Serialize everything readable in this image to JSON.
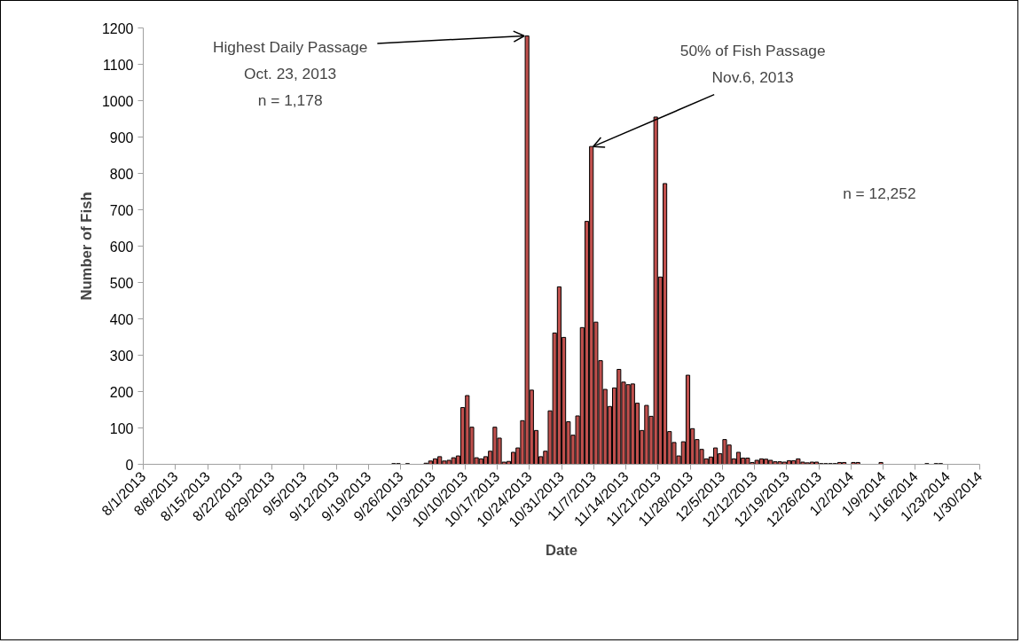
{
  "chart_data": {
    "type": "bar",
    "xlabel": "Date",
    "ylabel": "Number of Fish",
    "x": [
      "2013-09-24",
      "2013-09-25",
      "2013-09-27",
      "2013-10-01",
      "2013-10-02",
      "2013-10-03",
      "2013-10-04",
      "2013-10-05",
      "2013-10-06",
      "2013-10-07",
      "2013-10-08",
      "2013-10-09",
      "2013-10-10",
      "2013-10-11",
      "2013-10-12",
      "2013-10-13",
      "2013-10-14",
      "2013-10-15",
      "2013-10-16",
      "2013-10-17",
      "2013-10-18",
      "2013-10-19",
      "2013-10-20",
      "2013-10-21",
      "2013-10-22",
      "2013-10-23",
      "2013-10-24",
      "2013-10-25",
      "2013-10-26",
      "2013-10-27",
      "2013-10-28",
      "2013-10-29",
      "2013-10-30",
      "2013-10-31",
      "2013-11-01",
      "2013-11-02",
      "2013-11-03",
      "2013-11-04",
      "2013-11-05",
      "2013-11-06",
      "2013-11-07",
      "2013-11-08",
      "2013-11-09",
      "2013-11-10",
      "2013-11-11",
      "2013-11-12",
      "2013-11-13",
      "2013-11-14",
      "2013-11-15",
      "2013-11-16",
      "2013-11-17",
      "2013-11-18",
      "2013-11-19",
      "2013-11-20",
      "2013-11-21",
      "2013-11-22",
      "2013-11-23",
      "2013-11-24",
      "2013-11-25",
      "2013-11-26",
      "2013-11-27",
      "2013-11-28",
      "2013-11-29",
      "2013-11-30",
      "2013-12-01",
      "2013-12-02",
      "2013-12-03",
      "2013-12-04",
      "2013-12-05",
      "2013-12-06",
      "2013-12-07",
      "2013-12-08",
      "2013-12-09",
      "2013-12-10",
      "2013-12-11",
      "2013-12-12",
      "2013-12-13",
      "2013-12-14",
      "2013-12-15",
      "2013-12-16",
      "2013-12-17",
      "2013-12-18",
      "2013-12-19",
      "2013-12-20",
      "2013-12-21",
      "2013-12-22",
      "2013-12-23",
      "2013-12-24",
      "2013-12-25",
      "2013-12-26",
      "2013-12-27",
      "2013-12-28",
      "2013-12-29",
      "2013-12-30",
      "2013-12-31",
      "2014-01-02",
      "2014-01-03",
      "2014-01-08",
      "2014-01-18",
      "2014-01-20",
      "2014-01-21"
    ],
    "values": [
      2,
      2,
      2,
      3,
      9,
      15,
      21,
      9,
      11,
      18,
      23,
      156,
      189,
      102,
      18,
      15,
      21,
      36,
      102,
      72,
      6,
      8,
      33,
      45,
      120,
      1178,
      204,
      93,
      21,
      36,
      147,
      361,
      488,
      349,
      117,
      80,
      133,
      376,
      668,
      874,
      391,
      285,
      206,
      159,
      210,
      261,
      226,
      219,
      221,
      168,
      93,
      162,
      132,
      955,
      515,
      772,
      90,
      60,
      23,
      62,
      245,
      98,
      68,
      41,
      15,
      20,
      45,
      29,
      68,
      53,
      15,
      33,
      17,
      17,
      5,
      11,
      15,
      14,
      11,
      7,
      7,
      6,
      10,
      10,
      15,
      6,
      4,
      6,
      6,
      2,
      2,
      2,
      2,
      5,
      5,
      5,
      5,
      5,
      2,
      2,
      2
    ],
    "color": "#c0504d",
    "xlim": [
      "2013-08-01",
      "2014-01-30"
    ],
    "xticks": [
      {
        "value": "2013-08-01",
        "label": "8/1/2013"
      },
      {
        "value": "2013-08-08",
        "label": "8/8/2013"
      },
      {
        "value": "2013-08-15",
        "label": "8/15/2013"
      },
      {
        "value": "2013-08-22",
        "label": "8/22/2013"
      },
      {
        "value": "2013-08-29",
        "label": "8/29/2013"
      },
      {
        "value": "2013-09-05",
        "label": "9/5/2013"
      },
      {
        "value": "2013-09-12",
        "label": "9/12/2013"
      },
      {
        "value": "2013-09-19",
        "label": "9/19/2013"
      },
      {
        "value": "2013-09-26",
        "label": "9/26/2013"
      },
      {
        "value": "2013-10-03",
        "label": "10/3/2013"
      },
      {
        "value": "2013-10-10",
        "label": "10/10/2013"
      },
      {
        "value": "2013-10-17",
        "label": "10/17/2013"
      },
      {
        "value": "2013-10-24",
        "label": "10/24/2013"
      },
      {
        "value": "2013-10-31",
        "label": "10/31/2013"
      },
      {
        "value": "2013-11-07",
        "label": "11/7/2013"
      },
      {
        "value": "2013-11-14",
        "label": "11/14/2013"
      },
      {
        "value": "2013-11-21",
        "label": "11/21/2013"
      },
      {
        "value": "2013-11-28",
        "label": "11/28/2013"
      },
      {
        "value": "2013-12-05",
        "label": "12/5/2013"
      },
      {
        "value": "2013-12-12",
        "label": "12/12/2013"
      },
      {
        "value": "2013-12-19",
        "label": "12/19/2013"
      },
      {
        "value": "2013-12-26",
        "label": "12/26/2013"
      },
      {
        "value": "2014-01-02",
        "label": "1/2/2014"
      },
      {
        "value": "2014-01-09",
        "label": "1/9/2014"
      },
      {
        "value": "2014-01-16",
        "label": "1/16/2014"
      },
      {
        "value": "2014-01-23",
        "label": "1/23/2014"
      },
      {
        "value": "2014-01-30",
        "label": "1/30/2014"
      }
    ],
    "ylim": [
      0,
      1200
    ],
    "yticks": [
      0,
      100,
      200,
      300,
      400,
      500,
      600,
      700,
      800,
      900,
      1000,
      1100,
      1200
    ],
    "grid": false,
    "annotations": [
      {
        "text": "Highest Daily Passage\nOct. 23, 2013\nn = 1,178",
        "x": "2013-10-23",
        "y": 1178
      },
      {
        "text": "50% of Fish Passage\nNov.6, 2013",
        "x": "2013-11-06",
        "y": 874
      },
      "n = 12,252"
    ]
  }
}
